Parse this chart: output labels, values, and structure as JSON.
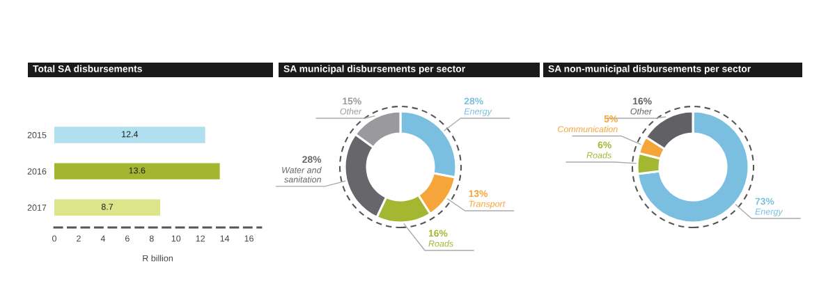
{
  "chart_data": [
    {
      "type": "bar",
      "title": "Total SA disbursements",
      "orientation": "horizontal",
      "categories": [
        "2015",
        "2016",
        "2017"
      ],
      "values": [
        12.4,
        13.6,
        8.7
      ],
      "colors": [
        "#b0e0ef",
        "#a4b530",
        "#dde58a"
      ],
      "xlim": [
        0,
        17
      ],
      "xticks": [
        0,
        2,
        4,
        6,
        8,
        10,
        12,
        14,
        16
      ],
      "xlabel": "R billion",
      "data_labels": true
    },
    {
      "type": "donut",
      "title": "SA municipal disbursements per sector",
      "categories": [
        "Energy",
        "Transport",
        "Roads",
        "Water and\nsanitation",
        "Other"
      ],
      "values": [
        28,
        13,
        16,
        28,
        15
      ],
      "value_labels": [
        "28%",
        "13%",
        "16%",
        "28%",
        "15%"
      ],
      "colors": [
        "#7bbfe0",
        "#f5a53a",
        "#a3b730",
        "#67676b",
        "#9a999e"
      ]
    },
    {
      "type": "donut",
      "title": "SA non-municipal disbursements per sector",
      "categories": [
        "Energy",
        "Roads",
        "Communication",
        "Other"
      ],
      "values": [
        73,
        6,
        5,
        16
      ],
      "value_labels": [
        "73%",
        "6%",
        "5%",
        "16%"
      ],
      "colors": [
        "#7bbfe0",
        "#a3b730",
        "#f5a53a",
        "#616165"
      ]
    }
  ]
}
